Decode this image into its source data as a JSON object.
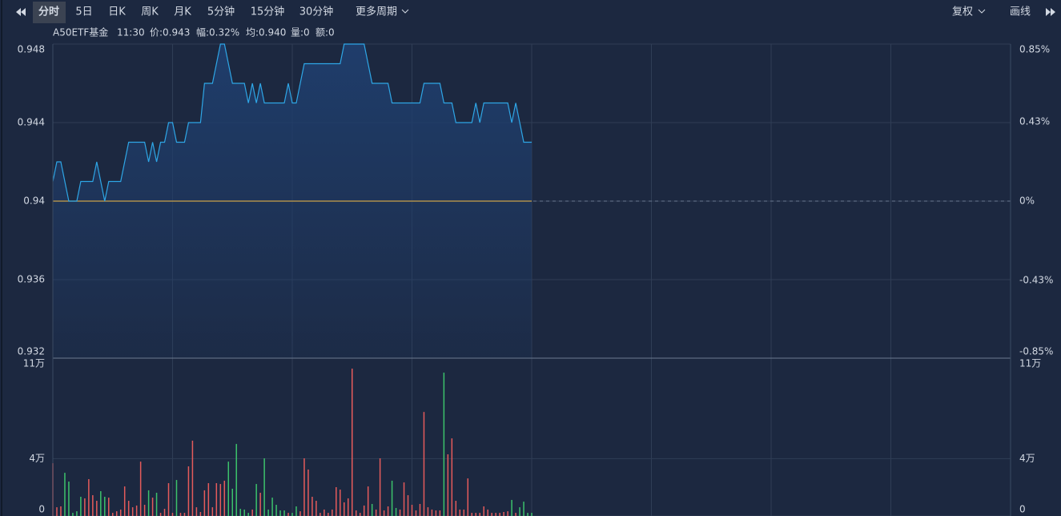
{
  "toolbar": {
    "left": [
      "分时",
      "5日",
      "日K",
      "周K",
      "月K",
      "5分钟",
      "15分钟",
      "30分钟",
      "更多周期"
    ],
    "right": [
      "复权",
      "画线"
    ]
  },
  "info": {
    "name": "A50ETF基金",
    "time": "11:30",
    "price": "价:0.943",
    "change": "幅:0.32%",
    "avg": "均:0.940",
    "volume": "量:0",
    "amount": "额:0"
  },
  "chart_data": [
    {
      "type": "line",
      "color": "#2ea6e6",
      "xlim": [
        0,
        240
      ],
      "xticks": [
        0,
        30,
        60,
        90,
        120,
        150,
        180,
        210,
        240
      ],
      "grid": true,
      "ylim": [
        0.932,
        0.948
      ],
      "yticks": [
        0.932,
        0.936,
        0.94,
        0.944,
        0.948
      ],
      "y2lim": [
        -0.85,
        0.85
      ],
      "y2ticks": [
        {
          "value": -0.85,
          "label": "-0.85%"
        },
        {
          "value": -0.43,
          "label": "-0.43%"
        },
        {
          "value": 0,
          "label": "0%"
        },
        {
          "value": 0.43,
          "label": "0.43%"
        },
        {
          "value": 0.85,
          "label": "0.85%"
        }
      ],
      "values": [
        0.941,
        0.942,
        0.942,
        0.941,
        0.94,
        0.94,
        0.94,
        0.941,
        0.941,
        0.941,
        0.941,
        0.942,
        0.941,
        0.94,
        0.941,
        0.941,
        0.941,
        0.941,
        0.942,
        0.943,
        0.943,
        0.943,
        0.943,
        0.943,
        0.942,
        0.943,
        0.942,
        0.943,
        0.943,
        0.944,
        0.944,
        0.943,
        0.943,
        0.943,
        0.944,
        0.944,
        0.944,
        0.944,
        0.946,
        0.946,
        0.946,
        0.947,
        0.948,
        0.948,
        0.947,
        0.946,
        0.946,
        0.946,
        0.946,
        0.945,
        0.946,
        0.945,
        0.946,
        0.945,
        0.945,
        0.945,
        0.945,
        0.945,
        0.945,
        0.946,
        0.945,
        0.945,
        0.946,
        0.947,
        0.947,
        0.947,
        0.947,
        0.947,
        0.947,
        0.947,
        0.947,
        0.947,
        0.947,
        0.948,
        0.948,
        0.948,
        0.948,
        0.948,
        0.948,
        0.947,
        0.946,
        0.946,
        0.946,
        0.946,
        0.946,
        0.945,
        0.945,
        0.945,
        0.945,
        0.945,
        0.945,
        0.945,
        0.945,
        0.946,
        0.946,
        0.946,
        0.946,
        0.946,
        0.945,
        0.945,
        0.945,
        0.944,
        0.944,
        0.944,
        0.944,
        0.944,
        0.945,
        0.944,
        0.945,
        0.945,
        0.945,
        0.945,
        0.945,
        0.945,
        0.945,
        0.944,
        0.945,
        0.944,
        0.943,
        0.943,
        0.943
      ]
    },
    {
      "type": "bar",
      "xlim": [
        0,
        240
      ],
      "xticks": [
        0,
        30,
        60,
        90,
        120,
        150,
        180,
        210,
        240
      ],
      "grid": true,
      "ylim": [
        0,
        110000
      ],
      "yticks": [
        0,
        {
          "value": 40000,
          "label": "4万"
        },
        {
          "value": 110000,
          "label": "11万"
        }
      ],
      "values": [
        36800,
        6100,
        6700,
        30100,
        24000,
        2200,
        3300,
        13400,
        12300,
        25700,
        14500,
        10600,
        17300,
        13400,
        12800,
        2200,
        3300,
        4500,
        20600,
        10600,
        6100,
        7300,
        37900,
        7800,
        17900,
        12800,
        16200,
        2200,
        5000,
        22900,
        2200,
        25100,
        2200,
        2200,
        34600,
        52500,
        6100,
        2800,
        17900,
        22900,
        6100,
        22900,
        22300,
        24600,
        37900,
        19000,
        50200,
        5000,
        4500,
        2200,
        4500,
        22300,
        16200,
        40200,
        4500,
        12800,
        7800,
        3900,
        3900,
        2200,
        2200,
        6700,
        3300,
        40200,
        32400,
        13400,
        10600,
        2200,
        4500,
        2200,
        4500,
        20100,
        18400,
        9500,
        12300,
        102700,
        3900,
        2200,
        7300,
        20600,
        8400,
        4500,
        40200,
        3900,
        6700,
        24600,
        5600,
        4500,
        23400,
        14500,
        7800,
        3900,
        8400,
        72500,
        6100,
        4500,
        3900,
        3900,
        99900,
        43000,
        54100,
        10600,
        4500,
        4500,
        26200,
        2200,
        2200,
        2200,
        6700,
        4500,
        2200,
        2200,
        2200,
        2800,
        3300,
        11200,
        2200,
        6100,
        10000,
        2200,
        2200
      ],
      "colors": [
        "#e55b5b",
        "#e55b5b",
        "#e55b5b",
        "#3cc26b",
        "#3cc26b",
        "#3cc26b",
        "#3cc26b",
        "#3cc26b",
        "#e55b5b",
        "#e55b5b",
        "#e55b5b",
        "#e55b5b",
        "#3cc26b",
        "#3cc26b",
        "#e55b5b",
        "#e55b5b",
        "#e55b5b",
        "#e55b5b",
        "#e55b5b",
        "#e55b5b",
        "#e55b5b",
        "#e55b5b",
        "#e55b5b",
        "#e55b5b",
        "#3cc26b",
        "#e55b5b",
        "#3cc26b",
        "#e55b5b",
        "#e55b5b",
        "#e55b5b",
        "#e55b5b",
        "#3cc26b",
        "#e55b5b",
        "#e55b5b",
        "#e55b5b",
        "#e55b5b",
        "#e55b5b",
        "#e55b5b",
        "#e55b5b",
        "#e55b5b",
        "#e55b5b",
        "#e55b5b",
        "#e55b5b",
        "#e55b5b",
        "#3cc26b",
        "#3cc26b",
        "#3cc26b",
        "#3cc26b",
        "#3cc26b",
        "#3cc26b",
        "#e55b5b",
        "#3cc26b",
        "#e55b5b",
        "#3cc26b",
        "#3cc26b",
        "#3cc26b",
        "#3cc26b",
        "#3cc26b",
        "#3cc26b",
        "#e55b5b",
        "#3cc26b",
        "#3cc26b",
        "#e55b5b",
        "#e55b5b",
        "#e55b5b",
        "#e55b5b",
        "#e55b5b",
        "#e55b5b",
        "#e55b5b",
        "#e55b5b",
        "#e55b5b",
        "#e55b5b",
        "#e55b5b",
        "#e55b5b",
        "#e55b5b",
        "#e55b5b",
        "#e55b5b",
        "#e55b5b",
        "#e55b5b",
        "#e55b5b",
        "#3cc26b",
        "#e55b5b",
        "#e55b5b",
        "#e55b5b",
        "#e55b5b",
        "#3cc26b",
        "#3cc26b",
        "#e55b5b",
        "#e55b5b",
        "#e55b5b",
        "#e55b5b",
        "#e55b5b",
        "#e55b5b",
        "#e55b5b",
        "#e55b5b",
        "#e55b5b",
        "#e55b5b",
        "#e55b5b",
        "#3cc26b",
        "#e55b5b",
        "#e55b5b",
        "#e55b5b",
        "#e55b5b",
        "#e55b5b",
        "#e55b5b",
        "#e55b5b",
        "#e55b5b",
        "#e55b5b",
        "#e55b5b",
        "#e55b5b",
        "#e55b5b",
        "#e55b5b",
        "#e55b5b",
        "#e55b5b",
        "#e55b5b",
        "#3cc26b",
        "#e55b5b",
        "#3cc26b",
        "#3cc26b",
        "#3cc26b",
        "#3cc26b"
      ]
    }
  ]
}
